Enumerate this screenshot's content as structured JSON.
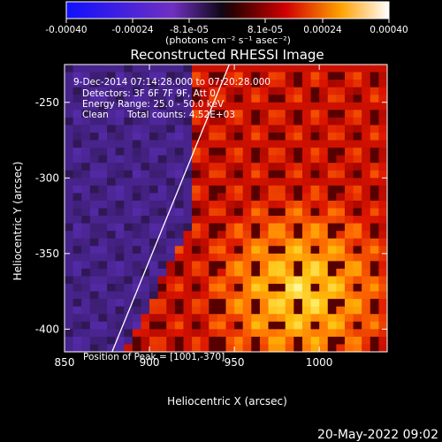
{
  "chart_data": {
    "type": "heatmap",
    "title": "Reconstructed RHESSI Image",
    "xlabel": "Heliocentric X (arcsec)",
    "ylabel": "Heliocentric Y (arcsec)",
    "xlim": [
      850,
      1040
    ],
    "ylim": [
      -415,
      -225
    ],
    "x_ticks": [
      "850",
      "900",
      "950",
      "1000"
    ],
    "y_ticks": [
      "-250",
      "-300",
      "-350",
      "-400"
    ],
    "x_tick_values": [
      850,
      900,
      950,
      1000
    ],
    "y_tick_values": [
      -250,
      -300,
      -350,
      -400
    ],
    "colorbar": {
      "range": [
        -0.0004,
        0.0004
      ],
      "tick_labels": [
        "-0.00040",
        "-0.00024",
        "-8.1e-05",
        "8.1e-05",
        "0.00024",
        "0.00040"
      ],
      "unit_label": "(photons cm⁻² s⁻¹ asec⁻²)"
    },
    "annotations": {
      "time_range": "9-Dec-2014 07:14:28.000 to 07:20:28.000",
      "detectors": "Detectors: 3F 6F 7F 9F, Att 0",
      "energy": "Energy Range: 25.0 - 50.0 keV",
      "method": "Clean",
      "counts": "Total counts: 4.52E+03",
      "peak": "Position of Peak = [1001,-370]"
    },
    "limb_line": {
      "x": [
        878,
        947
      ],
      "y": [
        -415,
        -225
      ]
    },
    "footer_date": "20-May-2022 09:02",
    "colors": {
      "cmap": [
        "#000000",
        "#0000ff",
        "#5a2ca0",
        "#2a1440",
        "#500000",
        "#c80000",
        "#ff5000",
        "#ffb400",
        "#ffff80",
        "#ffffff"
      ]
    }
  }
}
